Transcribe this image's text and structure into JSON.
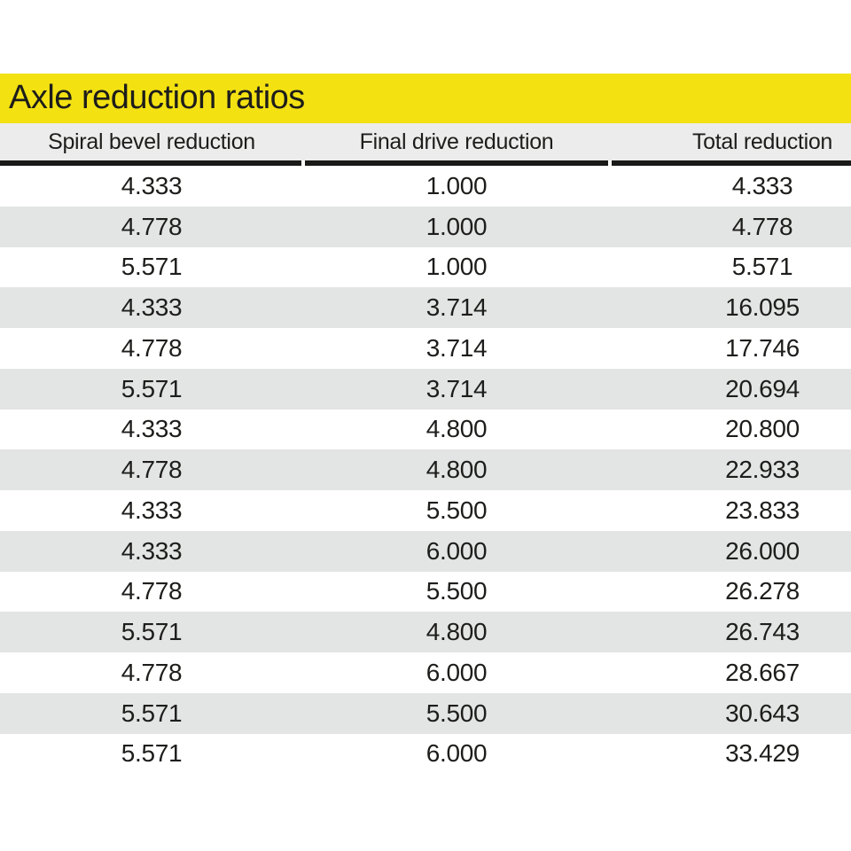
{
  "title": "Axle reduction ratios",
  "accent_color": "#f3e112",
  "row_stripe_color": "#e3e4e4",
  "header_band_color": "#ececec",
  "table": {
    "headers": [
      "Spiral bevel reduction",
      "Final drive reduction",
      "Total reduction"
    ],
    "rows": [
      [
        "4.333",
        "1.000",
        "4.333"
      ],
      [
        "4.778",
        "1.000",
        "4.778"
      ],
      [
        "5.571",
        "1.000",
        "5.571"
      ],
      [
        "4.333",
        "3.714",
        "16.095"
      ],
      [
        "4.778",
        "3.714",
        "17.746"
      ],
      [
        "5.571",
        "3.714",
        "20.694"
      ],
      [
        "4.333",
        "4.800",
        "20.800"
      ],
      [
        "4.778",
        "4.800",
        "22.933"
      ],
      [
        "4.333",
        "5.500",
        "23.833"
      ],
      [
        "4.333",
        "6.000",
        "26.000"
      ],
      [
        "4.778",
        "5.500",
        "26.278"
      ],
      [
        "5.571",
        "4.800",
        "26.743"
      ],
      [
        "4.778",
        "6.000",
        "28.667"
      ],
      [
        "5.571",
        "5.500",
        "30.643"
      ],
      [
        "5.571",
        "6.000",
        "33.429"
      ]
    ]
  }
}
